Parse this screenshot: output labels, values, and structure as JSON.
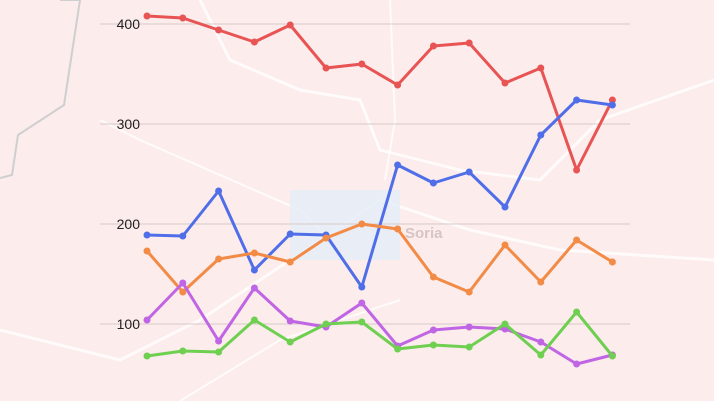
{
  "map": {
    "place_label": "Soria"
  },
  "chart_data": {
    "type": "line",
    "title": "",
    "xlabel": "",
    "ylabel": "",
    "ylim": [
      40,
      424
    ],
    "yticks": [
      100,
      200,
      300,
      400
    ],
    "grid": true,
    "legend": "none",
    "x": [
      1,
      2,
      3,
      4,
      5,
      6,
      7,
      8,
      9,
      10,
      11,
      12,
      13,
      14
    ],
    "series": [
      {
        "color": "#e85454",
        "values": [
          408,
          406,
          394,
          382,
          399,
          356,
          360,
          339,
          378,
          381,
          341,
          356,
          254,
          324
        ]
      },
      {
        "color": "#4f6ee8",
        "values": [
          189,
          188,
          233,
          154,
          190,
          189,
          137,
          259,
          241,
          252,
          217,
          289,
          324,
          319
        ]
      },
      {
        "color": "#f28b46",
        "values": [
          173,
          132,
          165,
          171,
          162,
          186,
          200,
          195,
          147,
          132,
          179,
          142,
          184,
          162
        ]
      },
      {
        "color": "#c065e3",
        "values": [
          104,
          141,
          83,
          136,
          103,
          97,
          121,
          78,
          94,
          97,
          95,
          82,
          60,
          69
        ]
      },
      {
        "color": "#6fcf50",
        "values": [
          68,
          73,
          72,
          104,
          82,
          100,
          102,
          75,
          79,
          77,
          100,
          69,
          112,
          68
        ]
      }
    ]
  }
}
